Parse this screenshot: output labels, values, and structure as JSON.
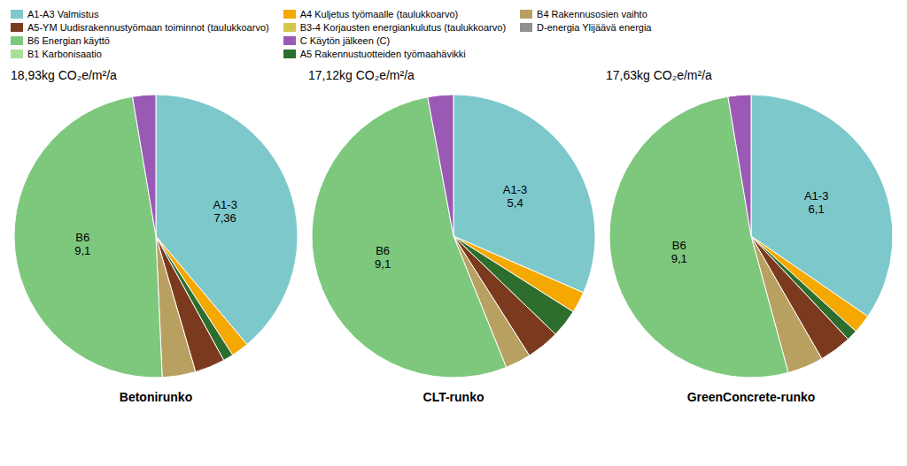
{
  "chart_data": [
    {
      "type": "pie",
      "title": "18,93kg CO₂e/m²/a",
      "subtitle": "Betonirunko",
      "categories": [
        "A1-A3 Valmistus",
        "A4 Kuljetus työmaalle (taulukkoarvo)",
        "A5 Rakennustuotteiden työmaahävikki",
        "A5-YM Uudisrakennustyömaan toiminnot (taulukkoarvo)",
        "B4 Rakennusosien vaihto",
        "B6 Energian käyttö",
        "C Käytön jälkeen (C)"
      ],
      "values": [
        7.36,
        0.38,
        0.22,
        0.65,
        0.72,
        9.1,
        0.5
      ],
      "value_labels": [
        "A1-3\n7,36",
        null,
        null,
        null,
        null,
        "B6\n9,1",
        null
      ],
      "colors": [
        "#7DC8CB",
        "#F5A800",
        "#2D6E2D",
        "#7B3A1E",
        "#B8A060",
        "#7DC87D",
        "#9B59B6"
      ],
      "data_labels": true
    },
    {
      "type": "pie",
      "title": "17,12kg CO₂e/m²/a",
      "subtitle": "CLT-runko",
      "categories": [
        "A1-A3 Valmistus",
        "A4 Kuljetus työmaalle (taulukkoarvo)",
        "A5 Rakennustuotteiden työmaahävikki",
        "A5-YM Uudisrakennustyömaan toiminnot (taulukkoarvo)",
        "B4 Rakennusosien vaihto",
        "B6 Energian käyttö",
        "C Käytön jälkeen (C)"
      ],
      "values": [
        5.4,
        0.42,
        0.55,
        0.65,
        0.5,
        9.1,
        0.5
      ],
      "value_labels": [
        "A1-3\n5,4",
        null,
        null,
        null,
        null,
        "B6\n9,1",
        null
      ],
      "colors": [
        "#7DC8CB",
        "#F5A800",
        "#2D6E2D",
        "#7B3A1E",
        "#B8A060",
        "#7DC87D",
        "#9B59B6"
      ],
      "data_labels": true
    },
    {
      "type": "pie",
      "title": "17,63kg CO₂e/m²/a",
      "subtitle": "GreenConcrete-runko",
      "categories": [
        "A1-A3 Valmistus",
        "A4 Kuljetus työmaalle (taulukkoarvo)",
        "A5 Rakennustuotteiden työmaahävikki",
        "A5-YM Uudisrakennustyömaan toiminnot (taulukkoarvo)",
        "B4 Rakennusosien vaihto",
        "B6 Energian käyttö",
        "C Käytön jälkeen (C)"
      ],
      "values": [
        6.1,
        0.38,
        0.22,
        0.65,
        0.72,
        9.1,
        0.46
      ],
      "value_labels": [
        "A1-3\n6,1",
        null,
        null,
        null,
        null,
        "B6\n9,1",
        null
      ],
      "colors": [
        "#7DC8CB",
        "#F5A800",
        "#2D6E2D",
        "#7B3A1E",
        "#B8A060",
        "#7DC87D",
        "#9B59B6"
      ],
      "data_labels": true
    }
  ],
  "legend": "upper left",
  "series": [
    {
      "name": "A1-A3 Valmistus",
      "color": "#7DC8CB"
    },
    {
      "name": "A5-YM Uudisrakennustyömaan toiminnot (taulukkoarvo)",
      "color": "#7B3A1E"
    },
    {
      "name": "B6 Energian käyttö",
      "color": "#7DC87D"
    },
    {
      "name": "B1 Karbonisaatio",
      "color": "#A8E096"
    },
    {
      "name": "A4 Kuljetus työmaalle (taulukkoarvo)",
      "color": "#F5A800"
    },
    {
      "name": "B3-4 Korjausten energiankulutus (taulukkoarvo)",
      "color": "#D4C84A"
    },
    {
      "name": "C Käytön jälkeen (C)",
      "color": "#9B59B6"
    },
    {
      "name": "A5 Rakennustuotteiden työmaahävikki",
      "color": "#2D6E2D"
    },
    {
      "name": "B4 Rakennusosien vaihto",
      "color": "#B8A060"
    },
    {
      "name": "D-energia Ylijäävä energia",
      "color": "#909090"
    }
  ]
}
